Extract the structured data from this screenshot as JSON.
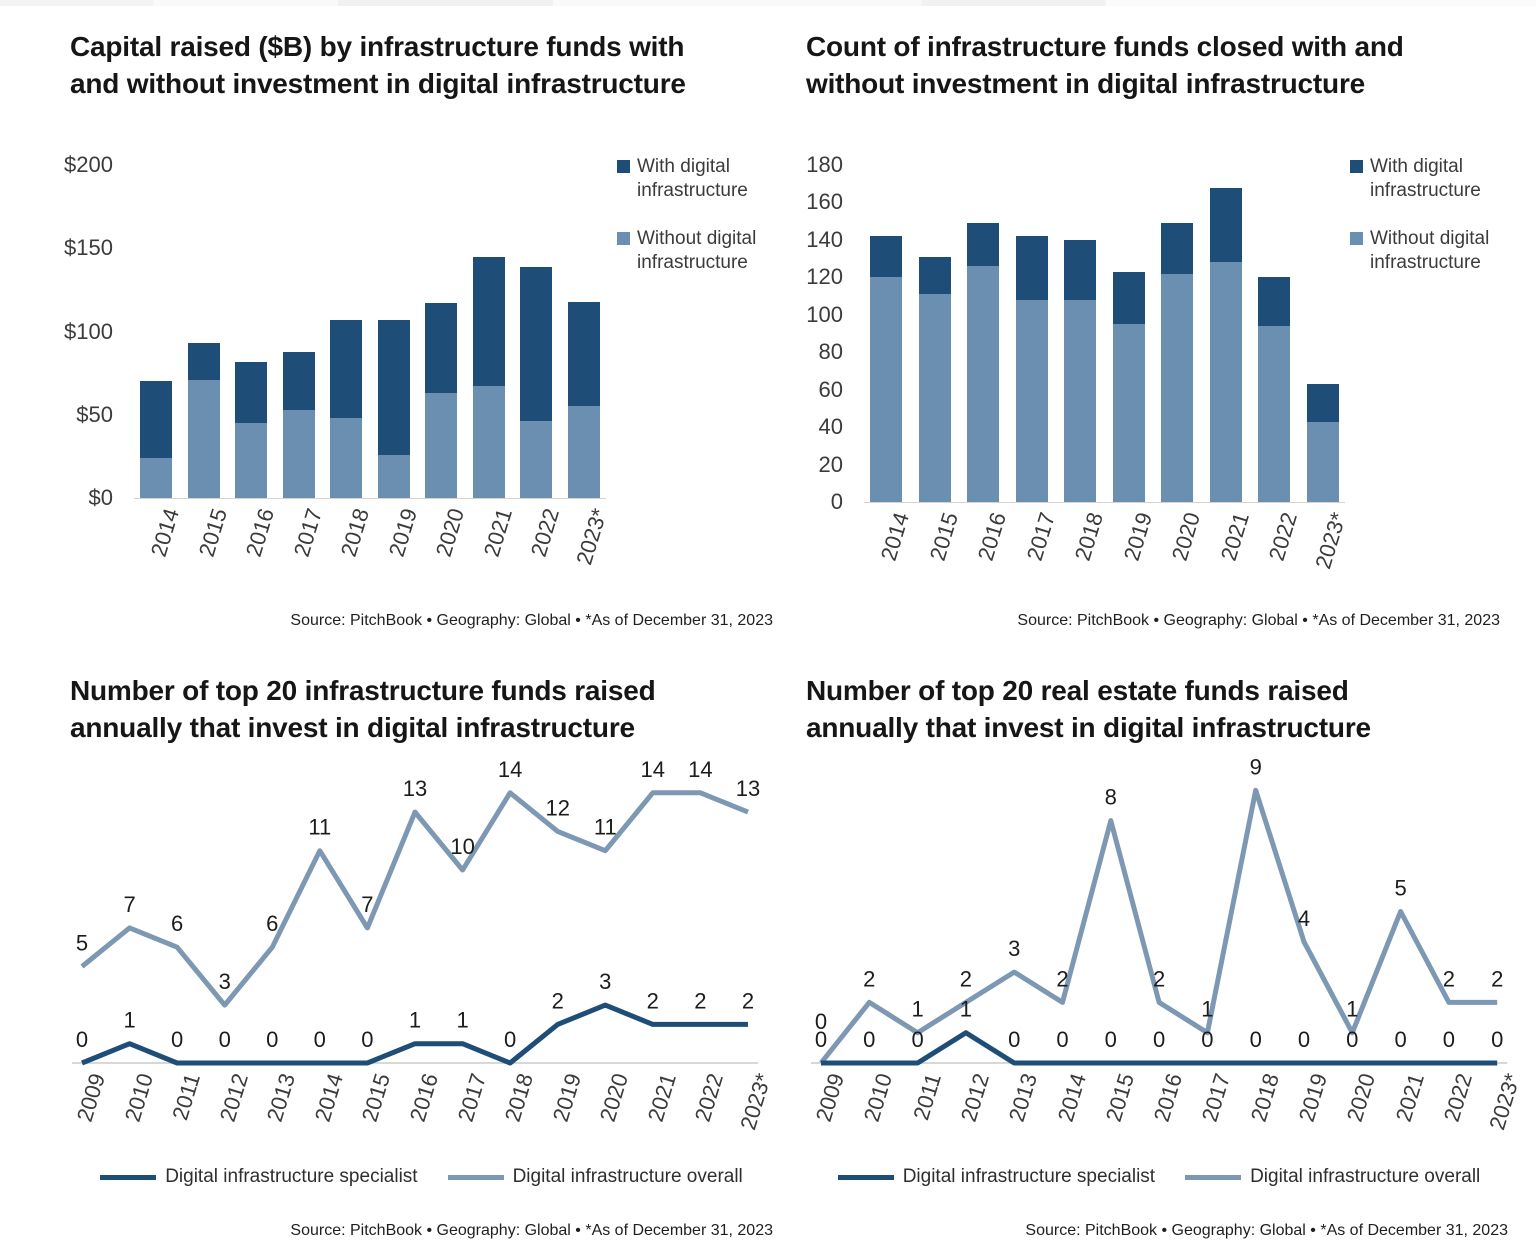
{
  "page": {
    "background": "#ffffff",
    "top_strip_color": "#f3f3f3"
  },
  "colors": {
    "dark_blue": "#1E4D78",
    "light_blue_bar": "#6B8FB1",
    "light_blue_line": "#7D98B3",
    "title_text": "#161616",
    "axis_text": "#3b3b3b",
    "source_text": "#1f1f1f",
    "zero_line": "#d8d8d8",
    "bar_axis_line": "#d9d2c9"
  },
  "legend_bar": {
    "with_label": "With digital infrastructure",
    "without_label": "Without digital infrastructure"
  },
  "legend_line": {
    "specialist_label": "Digital infrastructure specialist",
    "overall_label": "Digital infrastructure overall"
  },
  "source_line": "Source: PitchBook • Geography: Global • *As of December 31, 2023",
  "chart_data": [
    {
      "type": "bar",
      "stacked": true,
      "title": "Capital raised ($B) by infrastructure funds with and without investment in digital infrastructure",
      "title_lines": [
        "Capital raised ($B) by infrastructure funds with",
        "and without investment in digital infrastructure"
      ],
      "categories": [
        "2014",
        "2015",
        "2016",
        "2017",
        "2018",
        "2019",
        "2020",
        "2021",
        "2022",
        "2023*"
      ],
      "series": [
        {
          "name": "Without digital infrastructure",
          "color": "#6B8FB1",
          "values": [
            24,
            71,
            45,
            53,
            48,
            26,
            63,
            67,
            46,
            55
          ]
        },
        {
          "name": "With digital infrastructure",
          "color": "#1E4D78",
          "values": [
            46,
            22,
            37,
            35,
            59,
            81,
            54,
            78,
            93,
            63
          ]
        }
      ],
      "totals": [
        70,
        93,
        82,
        88,
        107,
        107,
        117,
        145,
        139,
        118
      ],
      "ylim": [
        0,
        200
      ],
      "yticks": [
        {
          "value": 0,
          "label": "$0"
        },
        {
          "value": 50,
          "label": "$50"
        },
        {
          "value": 100,
          "label": "$100"
        },
        {
          "value": 150,
          "label": "$150"
        },
        {
          "value": 200,
          "label": "$200"
        }
      ],
      "grid": false,
      "legend_position": "right",
      "legend": [
        "With digital infrastructure",
        "Without digital infrastructure"
      ],
      "source": "Source: PitchBook • Geography: Global • *As of December 31, 2023"
    },
    {
      "type": "bar",
      "stacked": true,
      "title": "Count of infrastructure funds closed with and without investment in digital infrastructure",
      "title_lines": [
        "Count of infrastructure funds closed with and",
        "without investment in digital infrastructure"
      ],
      "categories": [
        "2014",
        "2015",
        "2016",
        "2017",
        "2018",
        "2019",
        "2020",
        "2021",
        "2022",
        "2023*"
      ],
      "series": [
        {
          "name": "Without digital infrastructure",
          "color": "#6B8FB1",
          "values": [
            120,
            111,
            126,
            108,
            108,
            95,
            122,
            128,
            94,
            43
          ]
        },
        {
          "name": "With digital infrastructure",
          "color": "#1E4D78",
          "values": [
            22,
            20,
            23,
            34,
            32,
            28,
            27,
            40,
            26,
            20
          ]
        }
      ],
      "totals": [
        142,
        131,
        149,
        142,
        140,
        123,
        149,
        168,
        120,
        63
      ],
      "ylim": [
        0,
        180
      ],
      "yticks": [
        {
          "value": 0,
          "label": "0"
        },
        {
          "value": 20,
          "label": "20"
        },
        {
          "value": 40,
          "label": "40"
        },
        {
          "value": 60,
          "label": "60"
        },
        {
          "value": 80,
          "label": "80"
        },
        {
          "value": 100,
          "label": "100"
        },
        {
          "value": 120,
          "label": "120"
        },
        {
          "value": 140,
          "label": "140"
        },
        {
          "value": 160,
          "label": "160"
        },
        {
          "value": 180,
          "label": "180"
        }
      ],
      "grid": false,
      "legend_position": "right",
      "legend": [
        "With digital infrastructure",
        "Without digital infrastructure"
      ],
      "source": "Source: PitchBook • Geography: Global • *As of December 31, 2023"
    },
    {
      "type": "line",
      "title": "Number of top 20 infrastructure funds raised annually that invest in digital infrastructure",
      "title_lines": [
        "Number of top 20 infrastructure funds raised",
        "annually that invest in digital infrastructure"
      ],
      "categories": [
        "2009",
        "2010",
        "2011",
        "2012",
        "2013",
        "2014",
        "2015",
        "2016",
        "2017",
        "2018",
        "2019",
        "2020",
        "2021",
        "2022",
        "2023*"
      ],
      "series": [
        {
          "name": "Digital infrastructure specialist",
          "color": "#1E4D78",
          "values": [
            0,
            1,
            0,
            0,
            0,
            0,
            0,
            1,
            1,
            0,
            2,
            3,
            2,
            2,
            2
          ]
        },
        {
          "name": "Digital infrastructure overall",
          "color": "#7D98B3",
          "values": [
            5,
            7,
            6,
            3,
            6,
            11,
            7,
            13,
            10,
            14,
            12,
            11,
            14,
            14,
            13
          ]
        }
      ],
      "ylim": [
        0,
        16
      ],
      "point_labels": true,
      "grid": false,
      "legend_position": "bottom",
      "legend": [
        "Digital infrastructure specialist",
        "Digital infrastructure overall"
      ],
      "source": "Source: PitchBook • Geography: Global • *As of December 31, 2023"
    },
    {
      "type": "line",
      "title": "Number of top 20 real estate funds raised annually that invest in digital infrastructure",
      "title_lines": [
        "Number of top 20 real estate funds raised",
        "annually that invest in digital infrastructure"
      ],
      "categories": [
        "2009",
        "2010",
        "2011",
        "2012",
        "2013",
        "2014",
        "2015",
        "2016",
        "2017",
        "2018",
        "2019",
        "2020",
        "2021",
        "2022",
        "2023*"
      ],
      "series": [
        {
          "name": "Digital infrastructure specialist",
          "color": "#1E4D78",
          "values": [
            0,
            0,
            0,
            1,
            0,
            0,
            0,
            0,
            0,
            0,
            0,
            0,
            0,
            0,
            0
          ]
        },
        {
          "name": "Digital infrastructure overall",
          "color": "#7D98B3",
          "values": [
            0,
            2,
            1,
            2,
            3,
            2,
            8,
            2,
            1,
            9,
            4,
            1,
            5,
            2,
            2
          ]
        }
      ],
      "ylim": [
        0,
        10
      ],
      "point_labels": true,
      "grid": false,
      "legend_position": "bottom",
      "legend": [
        "Digital infrastructure specialist",
        "Digital infrastructure overall"
      ],
      "source": "Source: PitchBook • Geography: Global • *As of December 31, 2023"
    }
  ]
}
